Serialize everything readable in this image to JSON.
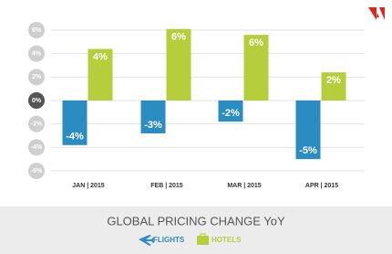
{
  "chart_data": {
    "type": "bar",
    "title": "GLOBAL PRICING CHANGE YoY",
    "categories": [
      "JAN | 2015",
      "FEB | 2015",
      "MAR | 2015",
      "APR | 2015"
    ],
    "series": [
      {
        "name": "FLIGHTS",
        "color": "#2a8cc0",
        "values": [
          -3.8,
          -2.8,
          -1.8,
          -5.0
        ],
        "value_labels": [
          "-4%",
          "-3%",
          "-2%",
          "-5%"
        ]
      },
      {
        "name": "HOTELS",
        "color": "#b6ce3c",
        "values": [
          4.4,
          6.1,
          5.6,
          2.4
        ],
        "value_labels": [
          "4%",
          "6%",
          "6%",
          "2%"
        ]
      }
    ],
    "ylim": [
      -6,
      6
    ],
    "yticks": [
      {
        "value": 6,
        "label": "6%"
      },
      {
        "value": 4,
        "label": "4%"
      },
      {
        "value": 2,
        "label": "2%"
      },
      {
        "value": 0,
        "label": "0%"
      },
      {
        "value": -2,
        "label": "-2%"
      },
      {
        "value": -4,
        "label": "-4%"
      },
      {
        "value": -6,
        "label": "-6%"
      }
    ],
    "grid": true
  }
}
